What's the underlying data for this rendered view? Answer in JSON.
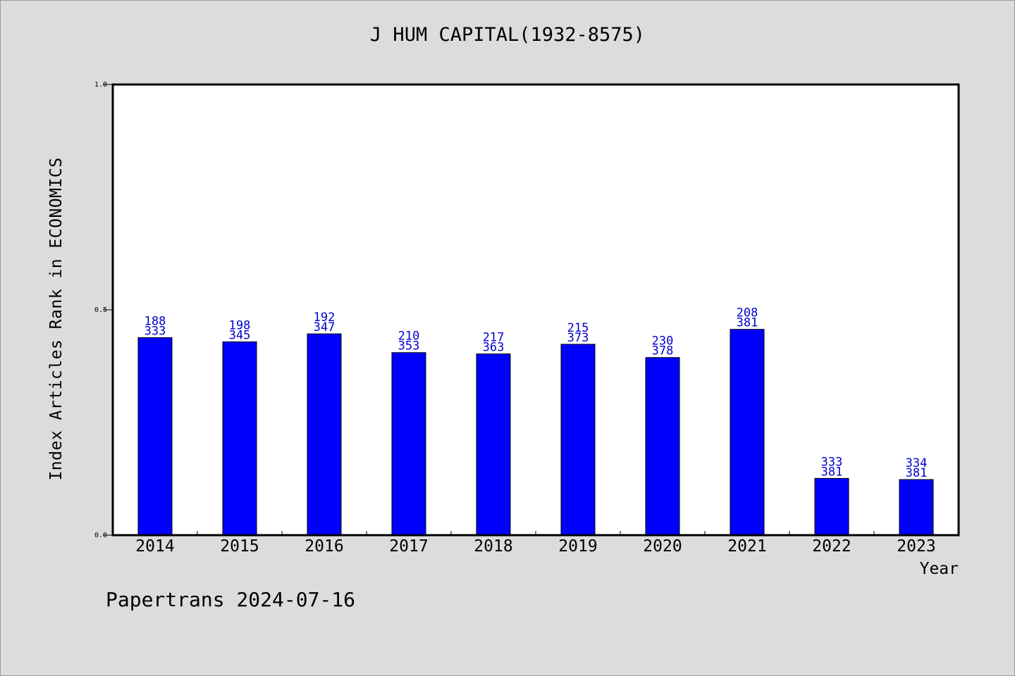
{
  "chart_data": {
    "type": "bar",
    "title": "J HUM CAPITAL(1932-8575)",
    "xlabel": "Year",
    "ylabel": "Index Articles Rank in ECONOMICS",
    "ylim": [
      0,
      1.0
    ],
    "yticks": [
      "0.0",
      "0.5",
      "1.0"
    ],
    "categories": [
      "2014",
      "2015",
      "2016",
      "2017",
      "2018",
      "2019",
      "2020",
      "2021",
      "2022",
      "2023"
    ],
    "values": [
      0.4384,
      0.429,
      0.4467,
      0.4051,
      0.4022,
      0.4236,
      0.3942,
      0.4567,
      0.126,
      0.1234
    ],
    "rank": [
      188,
      198,
      192,
      210,
      217,
      215,
      230,
      208,
      333,
      334
    ],
    "total": [
      333,
      345,
      347,
      353,
      363,
      373,
      378,
      381,
      381,
      381
    ],
    "bar_color": "#0000ff",
    "label_color": "#0000cc",
    "grid": false
  },
  "footer": "Papertrans 2024-07-16"
}
